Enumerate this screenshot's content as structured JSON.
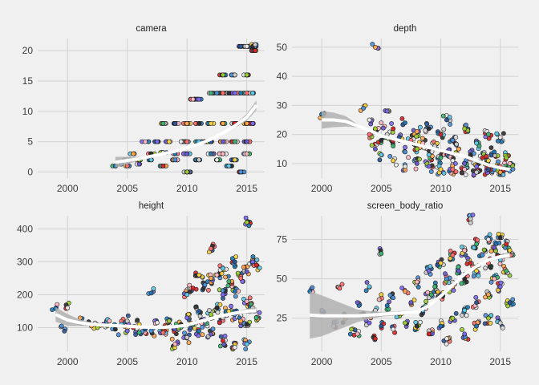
{
  "colors": {
    "background": "#f0f0f0",
    "grid": "#d2d2d2",
    "trend_line": "#ffffff",
    "confidence_band": "#b0b0b0",
    "point_palette": [
      "#1f77b4",
      "#4a90d9",
      "#e8e8e8",
      "#ff6e6e",
      "#ffa64d",
      "#9acd32",
      "#6a5acd",
      "#ffb6c1",
      "#2f2f2f",
      "#5ec8e8",
      "#7b68ee",
      "#cccccc",
      "#d62728",
      "#3cb371",
      "#f4d03f",
      "#2b5797"
    ]
  },
  "chart_data": [
    {
      "type": "scatter",
      "title": "camera",
      "xlabel": "",
      "ylabel": "",
      "xlim": [
        1997.5,
        2016.5
      ],
      "ylim": [
        -1,
        22
      ],
      "x_ticks": [
        2000,
        2005,
        2010,
        2015
      ],
      "y_ticks": [
        0,
        5,
        10,
        15,
        20
      ],
      "grid": true,
      "points": [
        [
          2004,
          1
        ],
        [
          2004.5,
          1.3
        ],
        [
          2005,
          2
        ],
        [
          2005,
          1
        ],
        [
          2005.5,
          3
        ],
        [
          2006,
          2
        ],
        [
          2006,
          1.3
        ],
        [
          2006.5,
          5
        ],
        [
          2007,
          3
        ],
        [
          2007,
          2
        ],
        [
          2007.5,
          5
        ],
        [
          2008,
          3.2
        ],
        [
          2008,
          1
        ],
        [
          2008,
          8
        ],
        [
          2008.5,
          5
        ],
        [
          2009,
          8
        ],
        [
          2009,
          3
        ],
        [
          2009,
          2
        ],
        [
          2009.5,
          5
        ],
        [
          2010,
          5
        ],
        [
          2010,
          8
        ],
        [
          2010,
          0
        ],
        [
          2010,
          3
        ],
        [
          2010.5,
          12
        ],
        [
          2011,
          8
        ],
        [
          2011,
          5
        ],
        [
          2011,
          12
        ],
        [
          2011,
          2
        ],
        [
          2011.5,
          5
        ],
        [
          2012,
          13
        ],
        [
          2012,
          8
        ],
        [
          2012,
          5
        ],
        [
          2012,
          3
        ],
        [
          2012.5,
          13
        ],
        [
          2012.5,
          2
        ],
        [
          2013,
          13
        ],
        [
          2013,
          8
        ],
        [
          2013,
          16
        ],
        [
          2013,
          5
        ],
        [
          2013,
          3
        ],
        [
          2013.5,
          13
        ],
        [
          2013.5,
          1
        ],
        [
          2014,
          13
        ],
        [
          2014,
          16
        ],
        [
          2014,
          8
        ],
        [
          2014,
          5
        ],
        [
          2014,
          2
        ],
        [
          2014.5,
          20.7
        ],
        [
          2014.5,
          13
        ],
        [
          2014.5,
          0
        ],
        [
          2015,
          20.7
        ],
        [
          2015,
          13
        ],
        [
          2015,
          8
        ],
        [
          2015,
          16
        ],
        [
          2015,
          5
        ],
        [
          2015,
          3
        ],
        [
          2015.5,
          20.7
        ],
        [
          2015.5,
          13
        ],
        [
          2015.5,
          8
        ],
        [
          2015.7,
          21
        ],
        [
          2015.7,
          20
        ]
      ],
      "trend": [
        [
          2004,
          1.6
        ],
        [
          2005,
          1.9
        ],
        [
          2006,
          2.2
        ],
        [
          2007,
          2.6
        ],
        [
          2008,
          3
        ],
        [
          2009,
          3.4
        ],
        [
          2010,
          4
        ],
        [
          2011,
          4.6
        ],
        [
          2012,
          5.4
        ],
        [
          2013,
          6.4
        ],
        [
          2014,
          7.6
        ],
        [
          2015,
          9
        ],
        [
          2015.8,
          11
        ]
      ],
      "band_halfwidth": [
        [
          2004,
          0.9
        ],
        [
          2006,
          0.3
        ],
        [
          2008,
          0.2
        ],
        [
          2012,
          0.2
        ],
        [
          2014,
          0.3
        ],
        [
          2015.8,
          0.8
        ]
      ]
    },
    {
      "type": "scatter",
      "title": "depth",
      "xlabel": "",
      "ylabel": "",
      "xlim": [
        1997.5,
        2016.5
      ],
      "ylim": [
        5,
        53
      ],
      "x_ticks": [
        2000,
        2005,
        2010,
        2015
      ],
      "y_ticks": [
        10,
        20,
        30,
        40,
        50
      ],
      "grid": true,
      "points": [
        [
          2000,
          27
        ],
        [
          2003.5,
          29
        ],
        [
          2004,
          25
        ],
        [
          2004,
          20
        ],
        [
          2004.5,
          50
        ],
        [
          2004.5,
          22
        ],
        [
          2004.5,
          15
        ],
        [
          2005,
          24
        ],
        [
          2005,
          18
        ],
        [
          2005,
          13
        ],
        [
          2005.5,
          28
        ],
        [
          2005.5,
          20
        ],
        [
          2006,
          22
        ],
        [
          2006,
          16
        ],
        [
          2006,
          11
        ],
        [
          2006.5,
          19
        ],
        [
          2007,
          24
        ],
        [
          2007,
          14
        ],
        [
          2007,
          9
        ],
        [
          2007.5,
          18
        ],
        [
          2008,
          21
        ],
        [
          2008,
          15
        ],
        [
          2008,
          10
        ],
        [
          2008.5,
          17
        ],
        [
          2009,
          22
        ],
        [
          2009,
          13
        ],
        [
          2009,
          9
        ],
        [
          2009.5,
          16
        ],
        [
          2010,
          20
        ],
        [
          2010,
          12
        ],
        [
          2010,
          8
        ],
        [
          2010.5,
          25
        ],
        [
          2010.5,
          14
        ],
        [
          2011,
          18
        ],
        [
          2011,
          11
        ],
        [
          2011,
          8
        ],
        [
          2011.5,
          15
        ],
        [
          2012,
          22
        ],
        [
          2012,
          10
        ],
        [
          2012,
          8
        ],
        [
          2012.5,
          13
        ],
        [
          2013,
          17
        ],
        [
          2013,
          9
        ],
        [
          2013,
          7
        ],
        [
          2013.5,
          12
        ],
        [
          2014,
          20
        ],
        [
          2014,
          11
        ],
        [
          2014,
          8
        ],
        [
          2014.5,
          14
        ],
        [
          2014.5,
          8
        ],
        [
          2015,
          19
        ],
        [
          2015,
          9
        ],
        [
          2015,
          7
        ],
        [
          2015.5,
          12
        ],
        [
          2015.5,
          8
        ],
        [
          2015.8,
          10
        ]
      ],
      "trend": [
        [
          2000,
          25
        ],
        [
          2001,
          25
        ],
        [
          2002,
          24.5
        ],
        [
          2003,
          23
        ],
        [
          2004,
          21.5
        ],
        [
          2005,
          19.5
        ],
        [
          2006,
          18.5
        ],
        [
          2007,
          17.5
        ],
        [
          2008,
          16.5
        ],
        [
          2009,
          15.5
        ],
        [
          2010,
          14.5
        ],
        [
          2011,
          13.5
        ],
        [
          2012,
          12.5
        ],
        [
          2013,
          11
        ],
        [
          2014,
          9.5
        ],
        [
          2015,
          8.5
        ],
        [
          2015.8,
          8
        ]
      ],
      "band_halfwidth": [
        [
          2000,
          3
        ],
        [
          2001,
          2.5
        ],
        [
          2002,
          1.8
        ],
        [
          2003,
          0.6
        ],
        [
          2005,
          0.3
        ],
        [
          2012,
          0.3
        ],
        [
          2015,
          0.4
        ],
        [
          2015.8,
          0.6
        ]
      ]
    },
    {
      "type": "scatter",
      "title": "height",
      "xlabel": "",
      "ylabel": "",
      "xlim": [
        1997.5,
        2016.5
      ],
      "ylim": [
        28,
        440
      ],
      "x_ticks": [
        2000,
        2005,
        2010,
        2015
      ],
      "y_ticks": [
        100,
        200,
        300,
        400
      ],
      "grid": true,
      "points": [
        [
          1999,
          158
        ],
        [
          1999.5,
          105
        ],
        [
          2000,
          160
        ],
        [
          2001,
          115
        ],
        [
          2002,
          105
        ],
        [
          2002.5,
          100
        ],
        [
          2003,
          110
        ],
        [
          2003.5,
          120
        ],
        [
          2004,
          95
        ],
        [
          2004.5,
          110
        ],
        [
          2005,
          90
        ],
        [
          2005,
          120
        ],
        [
          2005.5,
          100
        ],
        [
          2006,
          85
        ],
        [
          2006,
          110
        ],
        [
          2006.5,
          95
        ],
        [
          2007,
          205
        ],
        [
          2007,
          90
        ],
        [
          2007.5,
          115
        ],
        [
          2008,
          85
        ],
        [
          2008,
          100
        ],
        [
          2008.5,
          120
        ],
        [
          2009,
          95
        ],
        [
          2009,
          50
        ],
        [
          2009.5,
          110
        ],
        [
          2010,
          200
        ],
        [
          2010,
          130
        ],
        [
          2010,
          70
        ],
        [
          2010.5,
          220
        ],
        [
          2010.5,
          110
        ],
        [
          2011,
          260
        ],
        [
          2011,
          150
        ],
        [
          2011,
          90
        ],
        [
          2011.5,
          230
        ],
        [
          2011.5,
          120
        ],
        [
          2012,
          340
        ],
        [
          2012,
          250
        ],
        [
          2012,
          140
        ],
        [
          2012,
          80
        ],
        [
          2012.5,
          260
        ],
        [
          2012.5,
          160
        ],
        [
          2013,
          280
        ],
        [
          2013,
          200
        ],
        [
          2013,
          130
        ],
        [
          2013,
          60
        ],
        [
          2013.5,
          240
        ],
        [
          2013.5,
          150
        ],
        [
          2014,
          300
        ],
        [
          2014,
          210
        ],
        [
          2014,
          140
        ],
        [
          2014,
          40
        ],
        [
          2014.5,
          250
        ],
        [
          2014.5,
          120
        ],
        [
          2015,
          420
        ],
        [
          2015,
          270
        ],
        [
          2015,
          180
        ],
        [
          2015,
          110
        ],
        [
          2015,
          50
        ],
        [
          2015.5,
          300
        ],
        [
          2015.5,
          160
        ],
        [
          2015.8,
          290
        ],
        [
          2015.8,
          130
        ]
      ],
      "trend": [
        [
          1999,
          140
        ],
        [
          2000,
          123
        ],
        [
          2001,
          115
        ],
        [
          2002,
          110
        ],
        [
          2003,
          108
        ],
        [
          2004,
          106
        ],
        [
          2005,
          104
        ],
        [
          2006,
          102
        ],
        [
          2007,
          101
        ],
        [
          2008,
          101
        ],
        [
          2009,
          103
        ],
        [
          2010,
          108
        ],
        [
          2011,
          118
        ],
        [
          2012,
          128
        ],
        [
          2013,
          137
        ],
        [
          2014,
          144
        ],
        [
          2015,
          150
        ],
        [
          2015.8,
          152
        ]
      ],
      "band_halfwidth": [
        [
          1999,
          22
        ],
        [
          2000,
          18
        ],
        [
          2001,
          10
        ],
        [
          2002,
          6
        ],
        [
          2003,
          3
        ],
        [
          2005,
          2
        ],
        [
          2012,
          3
        ],
        [
          2014,
          4
        ],
        [
          2015.8,
          10
        ]
      ]
    },
    {
      "type": "scatter",
      "title": "screen_body_ratio",
      "xlabel": "",
      "ylabel": "",
      "xlim": [
        1997.5,
        2016.5
      ],
      "ylim": [
        4,
        90
      ],
      "x_ticks": [
        2000,
        2005,
        2010,
        2015
      ],
      "y_ticks": [
        25,
        50,
        75
      ],
      "grid": true,
      "points": [
        [
          1999,
          42
        ],
        [
          2000,
          30
        ],
        [
          2001,
          20
        ],
        [
          2001.5,
          44
        ],
        [
          2002,
          25
        ],
        [
          2002.5,
          18
        ],
        [
          2003,
          35
        ],
        [
          2003,
          15
        ],
        [
          2003.5,
          28
        ],
        [
          2004,
          45
        ],
        [
          2004,
          22
        ],
        [
          2004.5,
          30
        ],
        [
          2004.5,
          12
        ],
        [
          2005,
          66
        ],
        [
          2005,
          40
        ],
        [
          2005,
          20
        ],
        [
          2005.5,
          33
        ],
        [
          2006,
          38
        ],
        [
          2006,
          18
        ],
        [
          2006.5,
          28
        ],
        [
          2007,
          42
        ],
        [
          2007,
          22
        ],
        [
          2007.5,
          35
        ],
        [
          2008,
          48
        ],
        [
          2008,
          20
        ],
        [
          2008.5,
          30
        ],
        [
          2009,
          55
        ],
        [
          2009,
          38
        ],
        [
          2009,
          15
        ],
        [
          2009.5,
          45
        ],
        [
          2010,
          60
        ],
        [
          2010,
          40
        ],
        [
          2010,
          20
        ],
        [
          2010.5,
          50
        ],
        [
          2010.5,
          12
        ],
        [
          2011,
          65
        ],
        [
          2011,
          45
        ],
        [
          2011,
          25
        ],
        [
          2011.5,
          55
        ],
        [
          2012,
          68
        ],
        [
          2012,
          50
        ],
        [
          2012,
          30
        ],
        [
          2012,
          15
        ],
        [
          2012.5,
          88
        ],
        [
          2012.5,
          60
        ],
        [
          2013,
          72
        ],
        [
          2013,
          55
        ],
        [
          2013,
          35
        ],
        [
          2013,
          20
        ],
        [
          2013.5,
          65
        ],
        [
          2014,
          75
        ],
        [
          2014,
          60
        ],
        [
          2014,
          40
        ],
        [
          2014,
          25
        ],
        [
          2014.5,
          70
        ],
        [
          2014.5,
          50
        ],
        [
          2015,
          76
        ],
        [
          2015,
          62
        ],
        [
          2015,
          45
        ],
        [
          2015,
          22
        ],
        [
          2015.5,
          72
        ],
        [
          2015.5,
          55
        ],
        [
          2015.8,
          68
        ],
        [
          2015.8,
          35
        ]
      ],
      "trend": [
        [
          1999,
          27
        ],
        [
          2000,
          26.5
        ],
        [
          2001,
          26.5
        ],
        [
          2002,
          26.5
        ],
        [
          2003,
          26.5
        ],
        [
          2004,
          27
        ],
        [
          2005,
          27.5
        ],
        [
          2006,
          28
        ],
        [
          2007,
          28.5
        ],
        [
          2008,
          29
        ],
        [
          2009,
          33
        ],
        [
          2010,
          39
        ],
        [
          2011,
          46
        ],
        [
          2012,
          53
        ],
        [
          2013,
          58
        ],
        [
          2014,
          62
        ],
        [
          2015,
          64
        ],
        [
          2015.8,
          65
        ]
      ],
      "band_halfwidth": [
        [
          1999,
          15
        ],
        [
          2000,
          13
        ],
        [
          2001,
          10
        ],
        [
          2002,
          7
        ],
        [
          2003,
          4
        ],
        [
          2004,
          2.5
        ],
        [
          2005,
          1.5
        ],
        [
          2008,
          1
        ],
        [
          2012,
          1
        ],
        [
          2015,
          1.2
        ],
        [
          2015.8,
          2
        ]
      ]
    }
  ]
}
